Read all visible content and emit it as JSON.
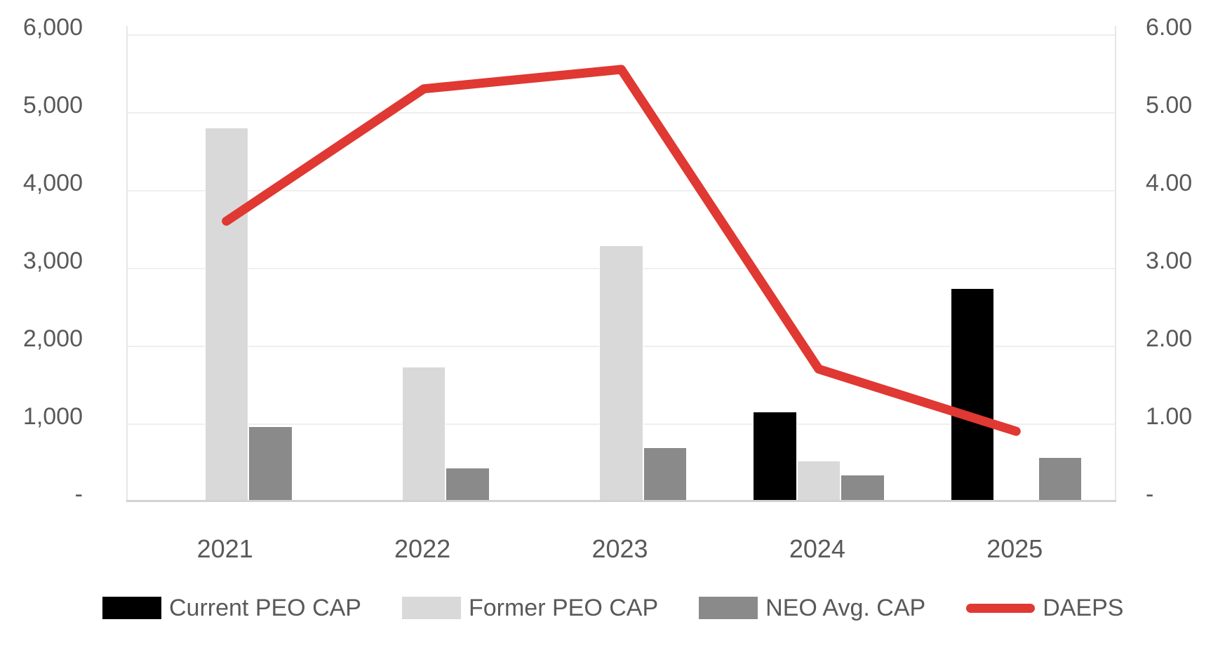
{
  "chart_data": {
    "type": "combo-bar-line",
    "title": "",
    "categories": [
      "2021",
      "2022",
      "2023",
      "2024",
      "2025"
    ],
    "bar_series": [
      {
        "name": "Current PEO CAP",
        "color": "#000000",
        "values": [
          0,
          0,
          0,
          1150,
          2740
        ]
      },
      {
        "name": "Former PEO CAP",
        "color": "#d9d9d9",
        "values": [
          4800,
          1730,
          3290,
          520,
          0
        ]
      },
      {
        "name": "NEO Avg. CAP",
        "color": "#8a8a8a",
        "values": [
          960,
          430,
          690,
          340,
          570
        ]
      }
    ],
    "line_series": {
      "name": "DAEPS",
      "color": "#e03832",
      "axis": "right",
      "values": [
        3.6,
        5.3,
        5.55,
        1.7,
        0.9
      ]
    },
    "left_axis": {
      "min": 0,
      "max": 6000,
      "step": 1000,
      "ticks": [
        "6,000",
        "5,000",
        "4,000",
        "3,000",
        "2,000",
        "1,000",
        "-"
      ]
    },
    "right_axis": {
      "min": 0,
      "max": 6,
      "step": 1,
      "ticks": [
        "6.00",
        "5.00",
        "4.00",
        "3.00",
        "2.00",
        "1.00",
        "-"
      ]
    },
    "grid": true,
    "legend_position": "bottom"
  },
  "style_colors": {
    "gridline": "#efefef",
    "axis_line": "#d2d2d2",
    "tick_text": "#595959",
    "background": "#ffffff"
  }
}
